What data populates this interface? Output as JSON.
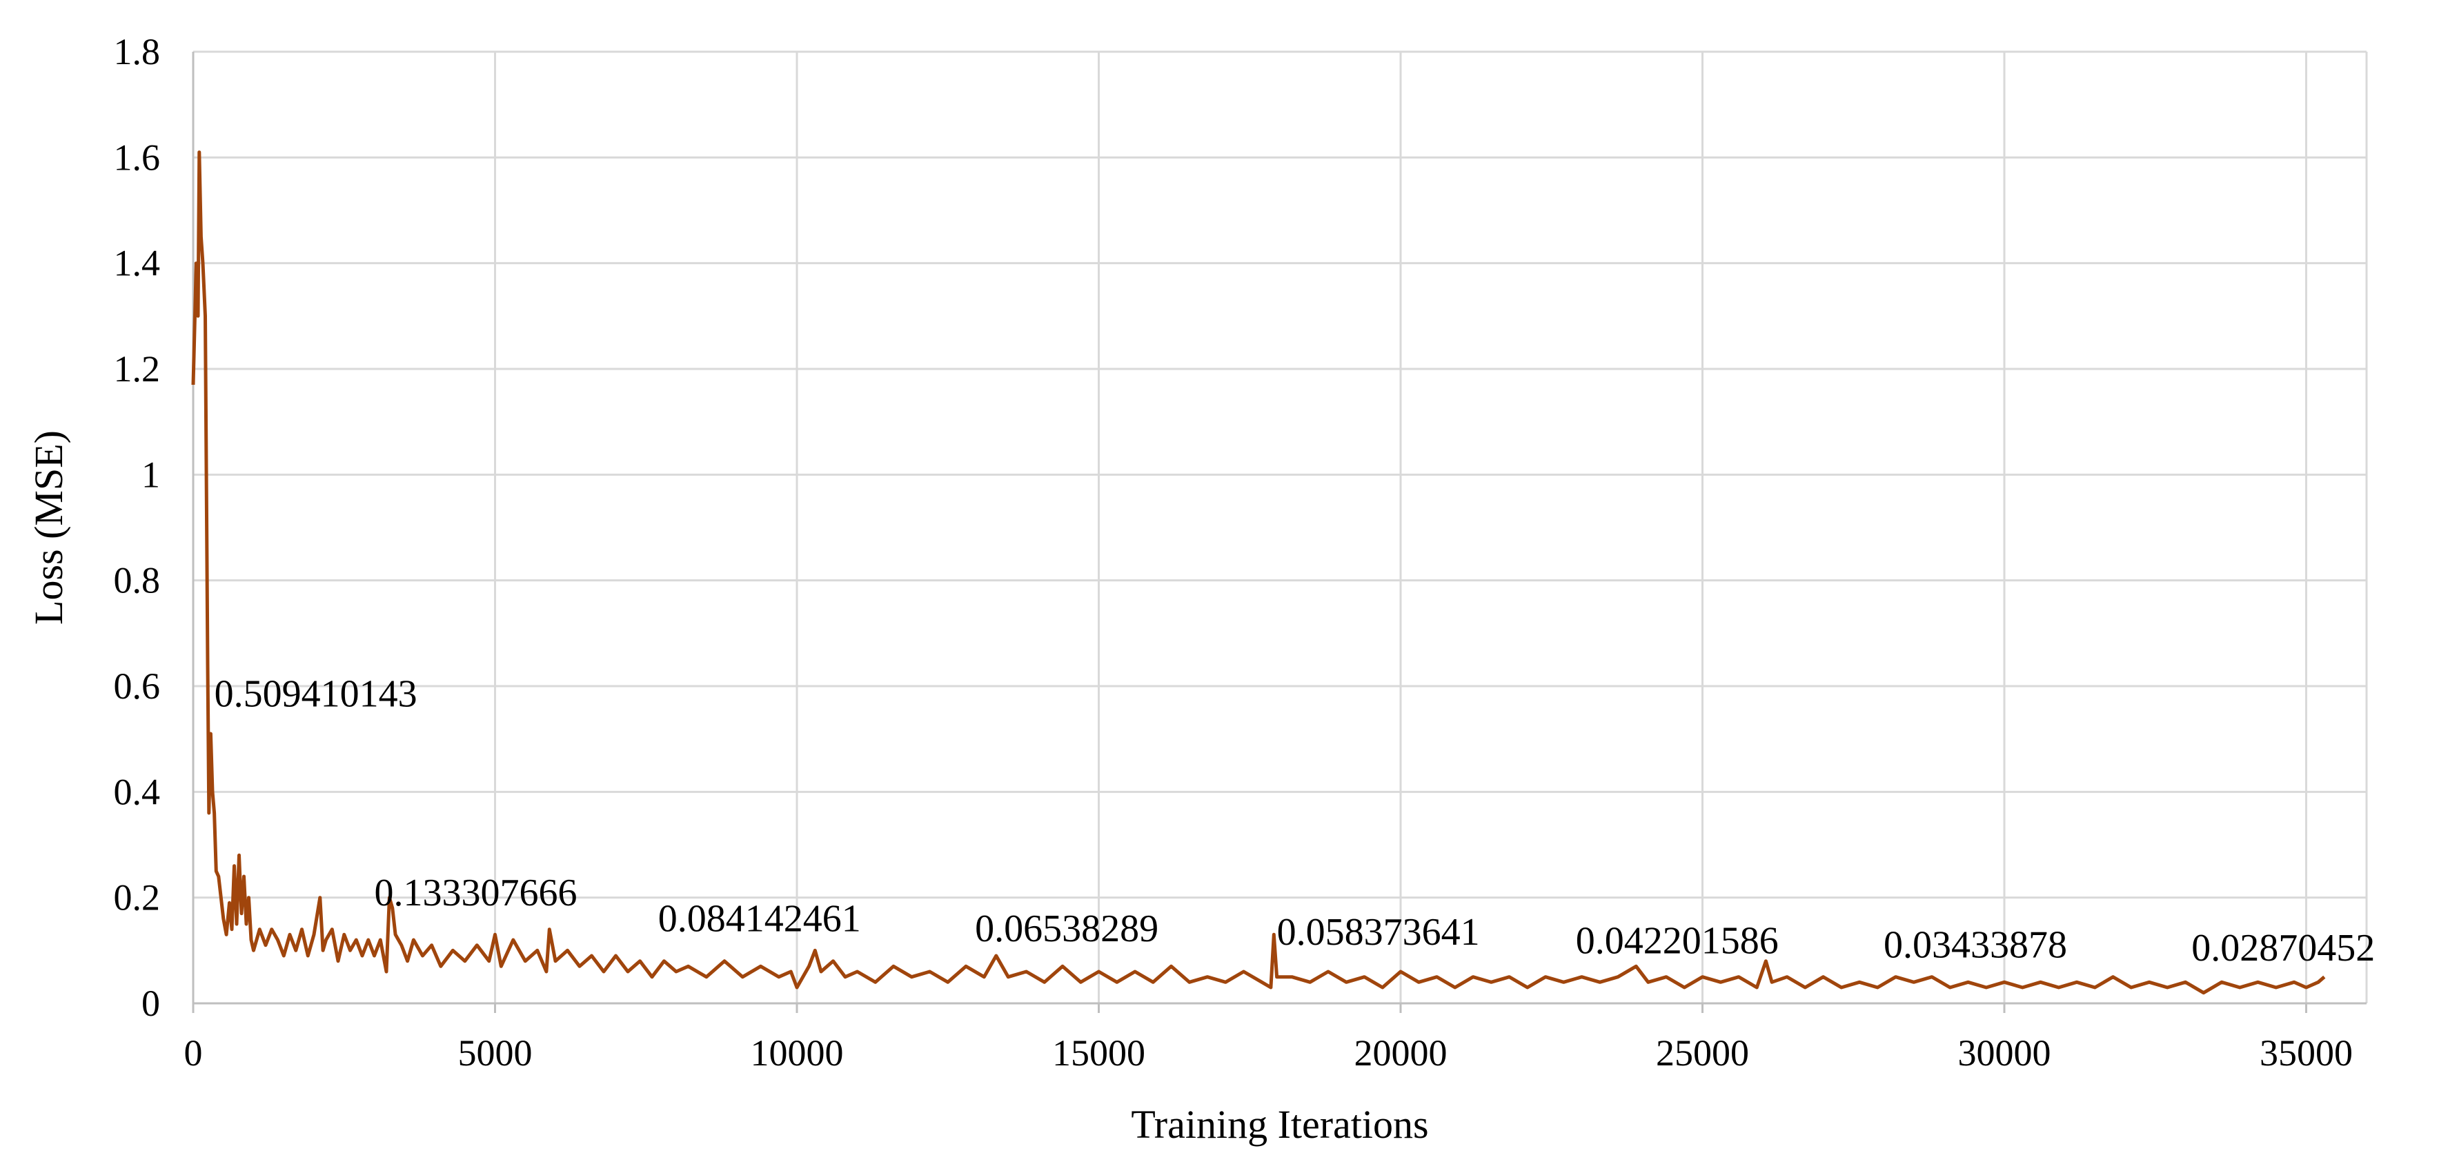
{
  "chart_data": {
    "type": "line",
    "title": "",
    "xlabel": "Training Iterations",
    "ylabel": "Loss (MSE)",
    "xlim": [
      0,
      36000
    ],
    "ylim": [
      0,
      1.8
    ],
    "x_ticks": [
      0,
      5000,
      10000,
      15000,
      20000,
      25000,
      30000,
      35000
    ],
    "y_ticks": [
      0,
      0.2,
      0.4,
      0.6,
      0.8,
      1,
      1.2,
      1.4,
      1.6,
      1.8
    ],
    "x_tick_labels": [
      "0",
      "5000",
      "10000",
      "15000",
      "20000",
      "25000",
      "30000",
      "35000"
    ],
    "y_tick_labels": [
      "0",
      "0.2",
      "0.4",
      "0.6",
      "0.8",
      "1",
      "1.2",
      "1.4",
      "1.6",
      "1.8"
    ],
    "grid": true,
    "legend": "none",
    "color": "#a0450c",
    "series": [
      {
        "values": [
          [
            0,
            1.17
          ],
          [
            50,
            1.4
          ],
          [
            80,
            1.3
          ],
          [
            100,
            1.61
          ],
          [
            130,
            1.45
          ],
          [
            160,
            1.4
          ],
          [
            200,
            1.3
          ],
          [
            240,
            0.64
          ],
          [
            260,
            0.36
          ],
          [
            290,
            0.51
          ],
          [
            320,
            0.4
          ],
          [
            350,
            0.36
          ],
          [
            380,
            0.25
          ],
          [
            420,
            0.24
          ],
          [
            460,
            0.2
          ],
          [
            500,
            0.16
          ],
          [
            550,
            0.13
          ],
          [
            600,
            0.19
          ],
          [
            640,
            0.14
          ],
          [
            680,
            0.26
          ],
          [
            720,
            0.15
          ],
          [
            760,
            0.28
          ],
          [
            800,
            0.17
          ],
          [
            840,
            0.24
          ],
          [
            880,
            0.15
          ],
          [
            920,
            0.2
          ],
          [
            960,
            0.12
          ],
          [
            1000,
            0.1
          ],
          [
            1100,
            0.14
          ],
          [
            1200,
            0.11
          ],
          [
            1300,
            0.14
          ],
          [
            1400,
            0.12
          ],
          [
            1500,
            0.09
          ],
          [
            1600,
            0.13
          ],
          [
            1700,
            0.1
          ],
          [
            1800,
            0.14
          ],
          [
            1900,
            0.09
          ],
          [
            2000,
            0.13
          ],
          [
            2100,
            0.2
          ],
          [
            2150,
            0.1
          ],
          [
            2200,
            0.12
          ],
          [
            2300,
            0.14
          ],
          [
            2400,
            0.08
          ],
          [
            2500,
            0.13
          ],
          [
            2600,
            0.1
          ],
          [
            2700,
            0.12
          ],
          [
            2800,
            0.09
          ],
          [
            2900,
            0.12
          ],
          [
            3000,
            0.09
          ],
          [
            3100,
            0.12
          ],
          [
            3200,
            0.06
          ],
          [
            3250,
            0.2
          ],
          [
            3300,
            0.18
          ],
          [
            3350,
            0.13
          ],
          [
            3450,
            0.11
          ],
          [
            3550,
            0.08
          ],
          [
            3650,
            0.12
          ],
          [
            3800,
            0.09
          ],
          [
            3950,
            0.11
          ],
          [
            4100,
            0.07
          ],
          [
            4300,
            0.1
          ],
          [
            4500,
            0.08
          ],
          [
            4700,
            0.11
          ],
          [
            4900,
            0.08
          ],
          [
            5000,
            0.13
          ],
          [
            5100,
            0.07
          ],
          [
            5300,
            0.12
          ],
          [
            5500,
            0.08
          ],
          [
            5700,
            0.1
          ],
          [
            5850,
            0.06
          ],
          [
            5900,
            0.14
          ],
          [
            6000,
            0.08
          ],
          [
            6200,
            0.1
          ],
          [
            6400,
            0.07
          ],
          [
            6600,
            0.09
          ],
          [
            6800,
            0.06
          ],
          [
            7000,
            0.09
          ],
          [
            7200,
            0.06
          ],
          [
            7400,
            0.08
          ],
          [
            7600,
            0.05
          ],
          [
            7800,
            0.08
          ],
          [
            8000,
            0.06
          ],
          [
            8200,
            0.07
          ],
          [
            8500,
            0.05
          ],
          [
            8800,
            0.08
          ],
          [
            9100,
            0.05
          ],
          [
            9400,
            0.07
          ],
          [
            9700,
            0.05
          ],
          [
            9900,
            0.06
          ],
          [
            10000,
            0.03
          ],
          [
            10200,
            0.07
          ],
          [
            10300,
            0.1
          ],
          [
            10400,
            0.06
          ],
          [
            10600,
            0.08
          ],
          [
            10800,
            0.05
          ],
          [
            11000,
            0.06
          ],
          [
            11300,
            0.04
          ],
          [
            11600,
            0.07
          ],
          [
            11900,
            0.05
          ],
          [
            12200,
            0.06
          ],
          [
            12500,
            0.04
          ],
          [
            12800,
            0.07
          ],
          [
            13100,
            0.05
          ],
          [
            13300,
            0.09
          ],
          [
            13500,
            0.05
          ],
          [
            13800,
            0.06
          ],
          [
            14100,
            0.04
          ],
          [
            14400,
            0.07
          ],
          [
            14700,
            0.04
          ],
          [
            15000,
            0.06
          ],
          [
            15300,
            0.04
          ],
          [
            15600,
            0.06
          ],
          [
            15900,
            0.04
          ],
          [
            16200,
            0.07
          ],
          [
            16500,
            0.04
          ],
          [
            16800,
            0.05
          ],
          [
            17100,
            0.04
          ],
          [
            17400,
            0.06
          ],
          [
            17700,
            0.04
          ],
          [
            17850,
            0.03
          ],
          [
            17900,
            0.13
          ],
          [
            17950,
            0.05
          ],
          [
            18200,
            0.05
          ],
          [
            18500,
            0.04
          ],
          [
            18800,
            0.06
          ],
          [
            19100,
            0.04
          ],
          [
            19400,
            0.05
          ],
          [
            19700,
            0.03
          ],
          [
            20000,
            0.06
          ],
          [
            20300,
            0.04
          ],
          [
            20600,
            0.05
          ],
          [
            20900,
            0.03
          ],
          [
            21200,
            0.05
          ],
          [
            21500,
            0.04
          ],
          [
            21800,
            0.05
          ],
          [
            22100,
            0.03
          ],
          [
            22400,
            0.05
          ],
          [
            22700,
            0.04
          ],
          [
            23000,
            0.05
          ],
          [
            23300,
            0.04
          ],
          [
            23600,
            0.05
          ],
          [
            23900,
            0.07
          ],
          [
            24100,
            0.04
          ],
          [
            24400,
            0.05
          ],
          [
            24700,
            0.03
          ],
          [
            25000,
            0.05
          ],
          [
            25300,
            0.04
          ],
          [
            25600,
            0.05
          ],
          [
            25900,
            0.03
          ],
          [
            26050,
            0.08
          ],
          [
            26150,
            0.04
          ],
          [
            26400,
            0.05
          ],
          [
            26700,
            0.03
          ],
          [
            27000,
            0.05
          ],
          [
            27300,
            0.03
          ],
          [
            27600,
            0.04
          ],
          [
            27900,
            0.03
          ],
          [
            28200,
            0.05
          ],
          [
            28500,
            0.04
          ],
          [
            28800,
            0.05
          ],
          [
            29100,
            0.03
          ],
          [
            29400,
            0.04
          ],
          [
            29700,
            0.03
          ],
          [
            30000,
            0.04
          ],
          [
            30300,
            0.03
          ],
          [
            30600,
            0.04
          ],
          [
            30900,
            0.03
          ],
          [
            31200,
            0.04
          ],
          [
            31500,
            0.03
          ],
          [
            31800,
            0.05
          ],
          [
            32100,
            0.03
          ],
          [
            32400,
            0.04
          ],
          [
            32700,
            0.03
          ],
          [
            33000,
            0.04
          ],
          [
            33300,
            0.02
          ],
          [
            33600,
            0.04
          ],
          [
            33900,
            0.03
          ],
          [
            34200,
            0.04
          ],
          [
            34500,
            0.03
          ],
          [
            34800,
            0.04
          ],
          [
            35000,
            0.03
          ],
          [
            35200,
            0.04
          ],
          [
            35300,
            0.05
          ]
        ]
      }
    ],
    "data_labels": [
      {
        "x": 350,
        "y": 0.509410143,
        "text": "0.509410143"
      },
      {
        "x": 3000,
        "y": 0.133307666,
        "text": "0.133307666"
      },
      {
        "x": 7700,
        "y": 0.084142461,
        "text": "0.084142461"
      },
      {
        "x": 12950,
        "y": 0.06538289,
        "text": "0.06538289"
      },
      {
        "x": 17950,
        "y": 0.058373641,
        "text": "0.058373641"
      },
      {
        "x": 22900,
        "y": 0.042201586,
        "text": "0.042201586"
      },
      {
        "x": 28000,
        "y": 0.03433878,
        "text": "0.03433878"
      },
      {
        "x": 33100,
        "y": 0.02870452,
        "text": "0.02870452"
      }
    ]
  }
}
